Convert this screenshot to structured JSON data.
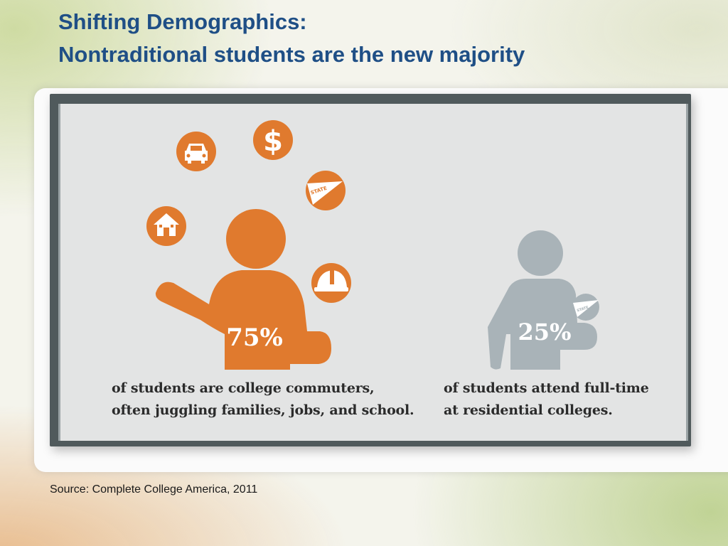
{
  "title": {
    "line1": "Shifting Demographics:",
    "line2": "Nontraditional students are the new majority"
  },
  "infographic": {
    "left": {
      "percent": "75%",
      "caption_line1": "of students are college commuters,",
      "caption_line2": "often juggling families, jobs, and school.",
      "icons": [
        "house-icon",
        "car-icon",
        "dollar-icon",
        "state-pennant-icon",
        "hard-hat-icon"
      ],
      "color": "#e07a2e"
    },
    "right": {
      "percent": "25%",
      "caption_line1": "of students attend full-time",
      "caption_line2": "at residential colleges.",
      "icons": [
        "state-pennant-icon"
      ],
      "color": "#a9b3b8"
    },
    "pennant_text": "STATE"
  },
  "source": "Source: Complete College America, 2011"
}
